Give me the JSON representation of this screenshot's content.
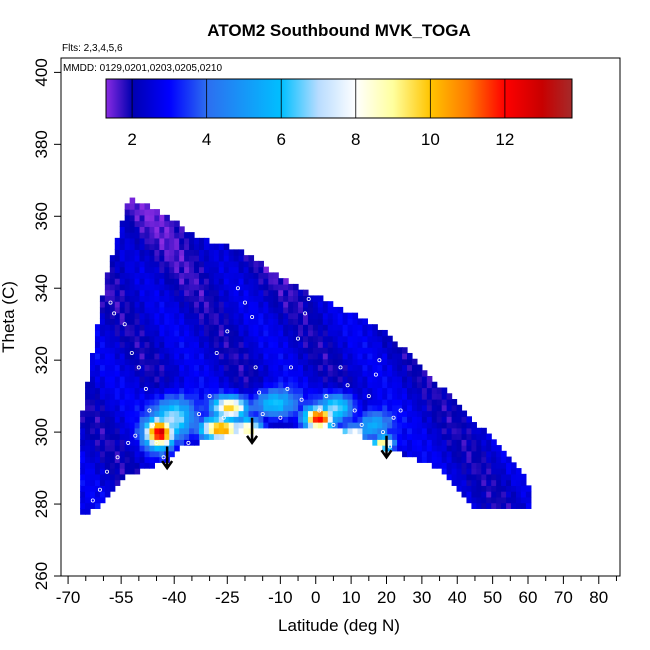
{
  "chart_data": {
    "type": "heatmap",
    "title": "ATOM2 Southbound MVK_TOGA",
    "subtitle_flights": "Flts: 2,3,4,5,6",
    "subtitle_dates": "MMDD: 0129,0201,0203,0205,0210",
    "xlabel": "Latitude (deg N)",
    "ylabel": "Theta (C)",
    "xlim": [
      -72,
      86
    ],
    "ylim": [
      260,
      404
    ],
    "x_major_ticks": [
      -70,
      -55,
      -40,
      -25,
      -10,
      0,
      10,
      20,
      30,
      40,
      50,
      60,
      70,
      80
    ],
    "x_minor_ticks": [
      -65,
      -60,
      -50,
      -45,
      -35,
      -30,
      -20,
      -15,
      -5,
      5,
      15,
      25,
      35,
      45,
      55,
      65,
      75,
      85
    ],
    "x_tick_labels": [
      "-70",
      "-55",
      "-40",
      "-25",
      "-10",
      "0",
      "10",
      "20",
      "30",
      "40",
      "50",
      "60",
      "70",
      "80"
    ],
    "y_ticks": [
      260,
      280,
      300,
      320,
      340,
      360,
      380,
      400
    ],
    "y_tick_labels": [
      "260",
      "280",
      "300",
      "320",
      "340",
      "360",
      "380",
      "400"
    ],
    "colorbar": {
      "range": [
        1.3,
        13.8
      ],
      "ticks": [
        2,
        4,
        6,
        8,
        10,
        12
      ],
      "tick_labels": [
        "2",
        "4",
        "6",
        "8",
        "10",
        "12"
      ],
      "stops": [
        {
          "v": 1.3,
          "c": "#8a2be2"
        },
        {
          "v": 2.0,
          "c": "#0000b0"
        },
        {
          "v": 3.0,
          "c": "#0000ff"
        },
        {
          "v": 4.0,
          "c": "#2d6ef0"
        },
        {
          "v": 6.0,
          "c": "#00bfff"
        },
        {
          "v": 7.0,
          "c": "#b8dcff"
        },
        {
          "v": 8.0,
          "c": "#ffffff"
        },
        {
          "v": 9.0,
          "c": "#ffff9e"
        },
        {
          "v": 10.0,
          "c": "#ffc400"
        },
        {
          "v": 11.0,
          "c": "#ff7a00"
        },
        {
          "v": 12.0,
          "c": "#ff0000"
        },
        {
          "v": 13.0,
          "c": "#c80000"
        },
        {
          "v": 13.8,
          "c": "#a52a2a"
        }
      ]
    },
    "curtain": {
      "description_note": "field value rendered as a lat-theta curtain",
      "top_edge": [
        [
          -67,
          300
        ],
        [
          -60,
          340
        ],
        [
          -53,
          365
        ],
        [
          -45,
          362
        ],
        [
          -35,
          355
        ],
        [
          -20,
          350
        ],
        [
          -10,
          343
        ],
        [
          0,
          338
        ],
        [
          10,
          333
        ],
        [
          20,
          328
        ],
        [
          30,
          318
        ],
        [
          40,
          308
        ],
        [
          50,
          298
        ],
        [
          58,
          290
        ],
        [
          61,
          282
        ]
      ],
      "bottom_edge": [
        [
          61,
          278
        ],
        [
          55,
          279
        ],
        [
          45,
          279
        ],
        [
          35,
          290
        ],
        [
          25,
          294
        ],
        [
          20,
          295
        ],
        [
          15,
          298
        ],
        [
          10,
          300
        ],
        [
          0,
          302
        ],
        [
          -10,
          302
        ],
        [
          -20,
          300
        ],
        [
          -30,
          298
        ],
        [
          -38,
          296
        ],
        [
          -42,
          292
        ],
        [
          -48,
          290
        ],
        [
          -55,
          287
        ],
        [
          -62,
          279
        ],
        [
          -67,
          276
        ]
      ],
      "background_value": 2.4,
      "blobs": [
        {
          "lat": -44,
          "theta": 300,
          "rlat": 4,
          "rth": 4,
          "v": 12.5
        },
        {
          "lat": -40,
          "theta": 304,
          "rlat": 6,
          "rth": 6,
          "v": 7.5
        },
        {
          "lat": -27,
          "theta": 301,
          "rlat": 6,
          "rth": 3,
          "v": 10.5
        },
        {
          "lat": -24,
          "theta": 307,
          "rlat": 5,
          "rth": 3,
          "v": 9.5
        },
        {
          "lat": -19,
          "theta": 301,
          "rlat": 4,
          "rth": 3,
          "v": 9.0
        },
        {
          "lat": -12,
          "theta": 308,
          "rlat": 6,
          "rth": 4,
          "v": 6.5
        },
        {
          "lat": 1,
          "theta": 304,
          "rlat": 4,
          "rth": 3,
          "v": 12.0
        },
        {
          "lat": 6,
          "theta": 307,
          "rlat": 5,
          "rth": 4,
          "v": 7.0
        },
        {
          "lat": 11,
          "theta": 300,
          "rlat": 4,
          "rth": 2,
          "v": 8.5
        },
        {
          "lat": 19,
          "theta": 297,
          "rlat": 3,
          "rth": 2,
          "v": 10.0
        },
        {
          "lat": 16,
          "theta": 302,
          "rlat": 5,
          "rth": 4,
          "v": 6.0
        }
      ]
    },
    "samples": [
      [
        -58,
        336
      ],
      [
        -57,
        333
      ],
      [
        -54,
        330
      ],
      [
        -52,
        322
      ],
      [
        -50,
        318
      ],
      [
        -48,
        312
      ],
      [
        -47,
        306
      ],
      [
        -46,
        302
      ],
      [
        -45,
        297
      ],
      [
        -43,
        293
      ],
      [
        -38,
        293
      ],
      [
        -33,
        305
      ],
      [
        -30,
        310
      ],
      [
        -28,
        322
      ],
      [
        -25,
        328
      ],
      [
        -22,
        340
      ],
      [
        -20,
        336
      ],
      [
        -18,
        332
      ],
      [
        -17,
        318
      ],
      [
        -16,
        311
      ],
      [
        -15,
        305
      ],
      [
        -12,
        299
      ],
      [
        -10,
        304
      ],
      [
        -8,
        312
      ],
      [
        -7,
        318
      ],
      [
        -5,
        326
      ],
      [
        -3,
        333
      ],
      [
        -2,
        337
      ],
      [
        -1,
        300
      ],
      [
        1,
        306
      ],
      [
        3,
        310
      ],
      [
        5,
        302
      ],
      [
        7,
        318
      ],
      [
        9,
        313
      ],
      [
        11,
        306
      ],
      [
        13,
        302
      ],
      [
        15,
        310
      ],
      [
        17,
        316
      ],
      [
        18,
        320
      ],
      [
        19,
        300
      ],
      [
        21,
        296
      ],
      [
        22,
        304
      ],
      [
        -63,
        281
      ],
      [
        -61,
        284
      ],
      [
        -59,
        289
      ],
      [
        -56,
        293
      ],
      [
        -53,
        297
      ],
      [
        -51,
        299
      ],
      [
        -36,
        297
      ],
      [
        -26,
        304
      ],
      [
        -14,
        296
      ],
      [
        -4,
        309
      ],
      [
        9,
        299
      ],
      [
        24,
        306
      ]
    ],
    "arrows": [
      {
        "lat": -42,
        "theta_from": 296,
        "theta_to": 290
      },
      {
        "lat": -18,
        "theta_from": 304,
        "theta_to": 297
      },
      {
        "lat": 20,
        "theta_from": 299,
        "theta_to": 293
      }
    ]
  }
}
